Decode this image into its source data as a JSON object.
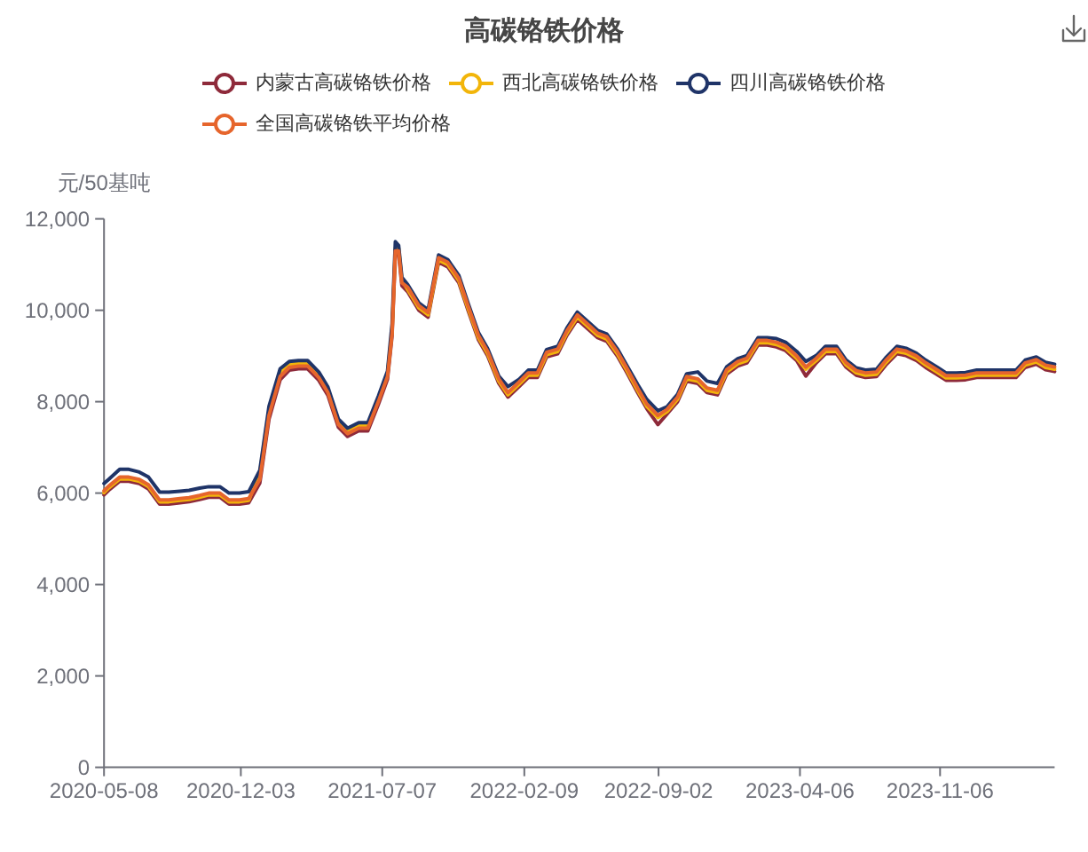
{
  "chart_data": {
    "type": "line",
    "title": "高碳铬铁价格",
    "ylabel": "元/50基吨",
    "legend": "top",
    "xlim": [
      "2020-05-08",
      "2024-04-29"
    ],
    "xticks": [
      "2020-05-08",
      "2020-12-03",
      "2021-07-07",
      "2022-02-09",
      "2022-09-02",
      "2023-04-06",
      "2023-11-06"
    ],
    "ylim": [
      0,
      12000
    ],
    "yticks": [
      0,
      {
        "value": 2000,
        "label": "2,000"
      },
      {
        "value": 4000,
        "label": "4,000"
      },
      {
        "value": 6000,
        "label": "6,000"
      },
      {
        "value": 8000,
        "label": "8,000"
      },
      {
        "value": 10000,
        "label": "10,000"
      },
      {
        "value": 12000,
        "label": "12,000"
      }
    ],
    "x": [
      "2020-05-08",
      "2020-05-15",
      "2020-06-01",
      "2020-06-15",
      "2020-07-01",
      "2020-07-15",
      "2020-08-01",
      "2020-08-15",
      "2020-09-01",
      "2020-09-15",
      "2020-10-01",
      "2020-10-15",
      "2020-11-01",
      "2020-11-15",
      "2020-12-01",
      "2020-12-15",
      "2021-01-01",
      "2021-01-15",
      "2021-02-01",
      "2021-02-15",
      "2021-03-01",
      "2021-03-15",
      "2021-04-01",
      "2021-04-15",
      "2021-05-01",
      "2021-05-15",
      "2021-06-01",
      "2021-06-15",
      "2021-07-01",
      "2021-07-15",
      "2021-07-22",
      "2021-07-27",
      "2021-08-01",
      "2021-08-06",
      "2021-08-15",
      "2021-09-01",
      "2021-09-15",
      "2021-10-01",
      "2021-10-15",
      "2021-11-01",
      "2021-11-15",
      "2021-12-01",
      "2021-12-15",
      "2022-01-01",
      "2022-01-15",
      "2022-02-01",
      "2022-02-15",
      "2022-03-01",
      "2022-03-15",
      "2022-04-01",
      "2022-04-15",
      "2022-05-01",
      "2022-05-15",
      "2022-06-01",
      "2022-06-15",
      "2022-07-01",
      "2022-07-15",
      "2022-08-01",
      "2022-08-15",
      "2022-09-01",
      "2022-09-15",
      "2022-10-01",
      "2022-10-15",
      "2022-11-01",
      "2022-11-15",
      "2022-12-01",
      "2022-12-15",
      "2023-01-01",
      "2023-01-15",
      "2023-02-01",
      "2023-02-15",
      "2023-03-01",
      "2023-03-15",
      "2023-04-01",
      "2023-04-15",
      "2023-05-01",
      "2023-05-15",
      "2023-06-01",
      "2023-06-15",
      "2023-07-01",
      "2023-07-15",
      "2023-08-01",
      "2023-08-15",
      "2023-09-01",
      "2023-09-15",
      "2023-10-01",
      "2023-10-15",
      "2023-11-01",
      "2023-11-15",
      "2023-12-01",
      "2023-12-15",
      "2024-01-01",
      "2024-01-15",
      "2024-02-01",
      "2024-02-15",
      "2024-03-01",
      "2024-03-15",
      "2024-04-01",
      "2024-04-15",
      "2024-04-29"
    ],
    "series": [
      {
        "name": "内蒙古高碳铬铁价格",
        "color": "#8e2a3a",
        "values": [
          5960,
          6060,
          6260,
          6260,
          6210,
          6090,
          5760,
          5760,
          5790,
          5810,
          5860,
          5910,
          5910,
          5760,
          5760,
          5790,
          6220,
          7620,
          8480,
          8690,
          8720,
          8720,
          8470,
          8140,
          7440,
          7240,
          7360,
          7360,
          7940,
          8490,
          9440,
          11240,
          11240,
          10540,
          10400,
          10000,
          9850,
          11050,
          10950,
          10600,
          10000,
          9350,
          9000,
          8400,
          8100,
          8330,
          8530,
          8530,
          8980,
          9050,
          9450,
          9800,
          9620,
          9400,
          9320,
          9000,
          8650,
          8200,
          7850,
          7500,
          7730,
          8000,
          8450,
          8400,
          8200,
          8150,
          8600,
          8780,
          8850,
          9240,
          9240,
          9200,
          9120,
          8900,
          8560,
          8850,
          9050,
          9050,
          8760,
          8580,
          8530,
          8550,
          8800,
          9050,
          9010,
          8900,
          8750,
          8600,
          8470,
          8470,
          8480,
          8530,
          8530,
          8530,
          8530,
          8530,
          8750,
          8820,
          8700,
          8660
        ]
      },
      {
        "name": "西北高碳铬铁价格",
        "color": "#f2b50a",
        "values": [
          6010,
          6110,
          6310,
          6310,
          6260,
          6140,
          5810,
          5810,
          5840,
          5860,
          5910,
          5960,
          5960,
          5810,
          5810,
          5840,
          6450,
          7800,
          8620,
          8810,
          8840,
          8840,
          8590,
          8260,
          7560,
          7360,
          7480,
          7480,
          8060,
          8610,
          9560,
          11360,
          11360,
          10660,
          10450,
          10050,
          9900,
          11100,
          11000,
          10650,
          10050,
          9400,
          9050,
          8450,
          8150,
          8380,
          8580,
          8580,
          9030,
          9100,
          9500,
          9850,
          9670,
          9450,
          9370,
          9050,
          8700,
          8250,
          7900,
          7650,
          7780,
          8050,
          8500,
          8450,
          8250,
          8200,
          8650,
          8830,
          8900,
          9290,
          9290,
          9250,
          9170,
          8950,
          8710,
          8900,
          9100,
          9100,
          8810,
          8630,
          8580,
          8600,
          8850,
          9100,
          9060,
          8950,
          8800,
          8650,
          8520,
          8520,
          8530,
          8580,
          8580,
          8580,
          8580,
          8580,
          8800,
          8870,
          8750,
          8710
        ]
      },
      {
        "name": "四川高碳铬铁价格",
        "color": "#1f3468",
        "values": [
          6210,
          6300,
          6520,
          6520,
          6460,
          6350,
          6020,
          6020,
          6040,
          6060,
          6110,
          6140,
          6140,
          6000,
          6000,
          6030,
          6500,
          7900,
          8720,
          8880,
          8900,
          8900,
          8650,
          8320,
          7620,
          7420,
          7540,
          7540,
          8120,
          8670,
          9700,
          11500,
          11420,
          10720,
          10560,
          10160,
          10010,
          11210,
          11110,
          10760,
          10160,
          9510,
          9160,
          8560,
          8330,
          8490,
          8690,
          8690,
          9140,
          9210,
          9610,
          9960,
          9780,
          9560,
          9480,
          9160,
          8810,
          8380,
          8050,
          7800,
          7890,
          8160,
          8610,
          8650,
          8450,
          8400,
          8760,
          8940,
          9010,
          9400,
          9400,
          9380,
          9300,
          9100,
          8880,
          9010,
          9210,
          9210,
          8920,
          8740,
          8690,
          8710,
          8960,
          9210,
          9170,
          9060,
          8910,
          8760,
          8630,
          8630,
          8640,
          8690,
          8690,
          8690,
          8690,
          8690,
          8910,
          8980,
          8860,
          8820
        ]
      },
      {
        "name": "全国高碳铬铁平均价格",
        "color": "#e6652c",
        "values": [
          6050,
          6150,
          6350,
          6350,
          6300,
          6180,
          5850,
          5850,
          5880,
          5900,
          5950,
          6000,
          6000,
          5850,
          5850,
          5880,
          6300,
          7700,
          8550,
          8750,
          8780,
          8780,
          8530,
          8200,
          7500,
          7300,
          7420,
          7420,
          8000,
          8550,
          9500,
          11300,
          11300,
          10600,
          10500,
          10100,
          9950,
          11150,
          11050,
          10700,
          10100,
          9450,
          9100,
          8500,
          8200,
          8430,
          8630,
          8630,
          9080,
          9150,
          9550,
          9900,
          9720,
          9500,
          9420,
          9100,
          8750,
          8300,
          7950,
          7700,
          7830,
          8100,
          8550,
          8500,
          8300,
          8250,
          8700,
          8880,
          8950,
          9340,
          9340,
          9300,
          9220,
          9000,
          8760,
          8950,
          9150,
          9150,
          8860,
          8680,
          8630,
          8650,
          8900,
          9150,
          9110,
          9000,
          8850,
          8700,
          8570,
          8570,
          8580,
          8630,
          8630,
          8630,
          8630,
          8630,
          8850,
          8920,
          8800,
          8760
        ]
      }
    ]
  }
}
